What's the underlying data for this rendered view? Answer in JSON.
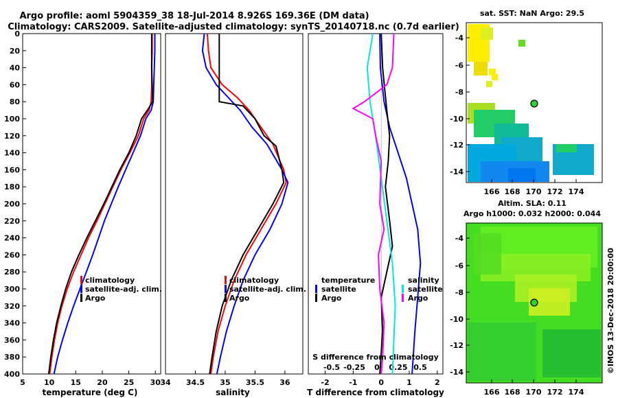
{
  "title_line1": "Argo profile: aoml 5904359_38 18-Jul-2014 8.926S 169.36E (DM data)",
  "title_line2": "Climatology: CARS2009. Satellite-adjusted climatology: synTS_20140718.nc (0.7d earlier)",
  "credit": "©IMOS 13-Dec-2018 20:00:00",
  "colors": {
    "climatology": "#ff0000",
    "satellite": "#0000ff",
    "argo": "#000000",
    "magenta": "#ff00ff",
    "cyan": "#00e5ee"
  },
  "chart_data": [
    {
      "type": "line",
      "name": "temperature-panel",
      "xlabel": "temperature (deg C)",
      "ylabel": "",
      "xlim": [
        5,
        31
      ],
      "ylim": [
        400,
        0
      ],
      "xticks": [
        5,
        10,
        15,
        20,
        25,
        30
      ],
      "yticks": [
        0,
        20,
        40,
        60,
        80,
        100,
        120,
        140,
        160,
        180,
        200,
        220,
        240,
        260,
        280,
        300,
        320,
        340,
        360,
        380,
        400
      ],
      "legend": [
        "climatology",
        "satellite-adj. clim.",
        "Argo"
      ],
      "legend_position": "bottom-right",
      "series": [
        {
          "name": "climatology",
          "color": "#ff0000",
          "points": [
            [
              29.4,
              0
            ],
            [
              29.4,
              20
            ],
            [
              29.3,
              40
            ],
            [
              29.3,
              60
            ],
            [
              29.2,
              80
            ],
            [
              28.8,
              90
            ],
            [
              27.8,
              100
            ],
            [
              26.8,
              120
            ],
            [
              25.2,
              140
            ],
            [
              23.5,
              160
            ],
            [
              22.0,
              180
            ],
            [
              20.5,
              200
            ],
            [
              19.0,
              220
            ],
            [
              17.4,
              240
            ],
            [
              16.0,
              260
            ],
            [
              14.6,
              280
            ],
            [
              13.4,
              300
            ],
            [
              12.4,
              320
            ],
            [
              11.6,
              340
            ],
            [
              11.0,
              360
            ],
            [
              10.5,
              380
            ],
            [
              10.1,
              400
            ]
          ]
        },
        {
          "name": "satellite-adj. clim.",
          "color": "#0000ff",
          "points": [
            [
              29.9,
              0
            ],
            [
              29.9,
              20
            ],
            [
              29.8,
              40
            ],
            [
              29.7,
              60
            ],
            [
              29.6,
              80
            ],
            [
              29.2,
              90
            ],
            [
              28.2,
              100
            ],
            [
              27.2,
              120
            ],
            [
              25.8,
              140
            ],
            [
              24.4,
              160
            ],
            [
              23.0,
              180
            ],
            [
              21.7,
              200
            ],
            [
              20.4,
              220
            ],
            [
              19.3,
              240
            ],
            [
              18.2,
              260
            ],
            [
              17.0,
              280
            ],
            [
              15.8,
              300
            ],
            [
              14.6,
              320
            ],
            [
              13.5,
              340
            ],
            [
              12.5,
              360
            ],
            [
              11.6,
              380
            ],
            [
              10.9,
              400
            ]
          ]
        },
        {
          "name": "Argo",
          "color": "#000000",
          "points": [
            [
              29.3,
              0
            ],
            [
              29.3,
              20
            ],
            [
              29.3,
              40
            ],
            [
              29.4,
              60
            ],
            [
              29.5,
              80
            ],
            [
              28.5,
              90
            ],
            [
              27.4,
              100
            ],
            [
              26.4,
              120
            ],
            [
              25.0,
              140
            ],
            [
              23.3,
              160
            ],
            [
              21.8,
              180
            ],
            [
              20.3,
              200
            ],
            [
              18.7,
              220
            ],
            [
              17.1,
              240
            ],
            [
              15.6,
              260
            ],
            [
              14.2,
              280
            ],
            [
              13.1,
              300
            ],
            [
              12.2,
              320
            ],
            [
              11.4,
              340
            ],
            [
              10.8,
              360
            ],
            [
              10.3,
              380
            ],
            [
              9.9,
              400
            ]
          ]
        }
      ]
    },
    {
      "type": "line",
      "name": "salinity-panel",
      "xlabel": "salinity",
      "ylabel": "",
      "xlim": [
        34,
        36.3
      ],
      "ylim": [
        400,
        0
      ],
      "xticks": [
        34,
        34.5,
        35,
        35.5,
        36
      ],
      "legend": [
        "climatology",
        "satellite-adj. clim.",
        "Argo"
      ],
      "legend_position": "bottom-right",
      "series": [
        {
          "name": "climatology",
          "color": "#ff0000",
          "points": [
            [
              34.7,
              0
            ],
            [
              34.72,
              20
            ],
            [
              34.76,
              40
            ],
            [
              34.95,
              60
            ],
            [
              35.2,
              75
            ],
            [
              35.4,
              90
            ],
            [
              35.6,
              110
            ],
            [
              35.8,
              130
            ],
            [
              35.98,
              160
            ],
            [
              36.02,
              175
            ],
            [
              35.85,
              200
            ],
            [
              35.6,
              230
            ],
            [
              35.35,
              260
            ],
            [
              35.15,
              290
            ],
            [
              35.0,
              320
            ],
            [
              34.88,
              350
            ],
            [
              34.8,
              380
            ],
            [
              34.76,
              400
            ]
          ]
        },
        {
          "name": "satellite-adj. clim.",
          "color": "#0000ff",
          "points": [
            [
              34.65,
              0
            ],
            [
              34.62,
              20
            ],
            [
              34.68,
              40
            ],
            [
              34.85,
              60
            ],
            [
              35.05,
              75
            ],
            [
              35.25,
              90
            ],
            [
              35.45,
              110
            ],
            [
              35.7,
              130
            ],
            [
              35.95,
              160
            ],
            [
              36.05,
              175
            ],
            [
              35.95,
              200
            ],
            [
              35.75,
              230
            ],
            [
              35.5,
              260
            ],
            [
              35.3,
              290
            ],
            [
              35.15,
              320
            ],
            [
              35.02,
              350
            ],
            [
              34.92,
              380
            ],
            [
              34.86,
              400
            ]
          ]
        },
        {
          "name": "Argo",
          "color": "#000000",
          "points": [
            [
              34.9,
              0
            ],
            [
              34.9,
              40
            ],
            [
              34.9,
              80
            ],
            [
              35.3,
              85
            ],
            [
              35.5,
              100
            ],
            [
              35.65,
              120
            ],
            [
              35.85,
              132
            ],
            [
              35.95,
              160
            ],
            [
              35.98,
              175
            ],
            [
              35.8,
              200
            ],
            [
              35.55,
              230
            ],
            [
              35.3,
              260
            ],
            [
              35.1,
              290
            ],
            [
              34.95,
              320
            ],
            [
              34.85,
              350
            ],
            [
              34.78,
              380
            ],
            [
              34.74,
              400
            ]
          ]
        }
      ]
    },
    {
      "type": "line",
      "name": "difference-panel",
      "xlabel": "T difference from climatology",
      "ylabel": "",
      "secondary_xlabel": "S difference from climatology",
      "xlim": [
        -2.6,
        2.2
      ],
      "ylim": [
        400,
        0
      ],
      "xticks": [
        -2,
        -1,
        0,
        1,
        2
      ],
      "secondary_xticks": [
        -0.5,
        -0.25,
        0,
        0.25,
        0.5
      ],
      "legend_left_title": "temperature",
      "legend_left": [
        "satellite",
        "Argo"
      ],
      "legend_right_title": "salinity",
      "legend_right": [
        "satellite",
        "Argo"
      ],
      "series": [
        {
          "name": "T satellite",
          "color": "#0000ff",
          "points": [
            [
              -0.05,
              0
            ],
            [
              -0.03,
              40
            ],
            [
              0.1,
              80
            ],
            [
              0.3,
              110
            ],
            [
              0.6,
              140
            ],
            [
              0.9,
              170
            ],
            [
              1.1,
              200
            ],
            [
              1.3,
              230
            ],
            [
              1.4,
              270
            ],
            [
              1.3,
              310
            ],
            [
              1.2,
              350
            ],
            [
              1.1,
              400
            ]
          ]
        },
        {
          "name": "T Argo",
          "color": "#000000",
          "points": [
            [
              0.0,
              0
            ],
            [
              0.05,
              40
            ],
            [
              0.2,
              90
            ],
            [
              0.3,
              120
            ],
            [
              0.25,
              150
            ],
            [
              0.15,
              180
            ],
            [
              0.3,
              220
            ],
            [
              0.4,
              250
            ],
            [
              0.2,
              280
            ],
            [
              0.0,
              310
            ],
            [
              0.05,
              350
            ],
            [
              -0.05,
              400
            ]
          ]
        },
        {
          "name": "S satellite",
          "color": "#00e5ee",
          "points": [
            [
              -0.3,
              0
            ],
            [
              -0.5,
              40
            ],
            [
              -0.4,
              80
            ],
            [
              -0.2,
              120
            ],
            [
              0.0,
              170
            ],
            [
              0.2,
              220
            ],
            [
              0.4,
              270
            ],
            [
              0.5,
              320
            ],
            [
              0.45,
              360
            ],
            [
              0.4,
              400
            ]
          ]
        },
        {
          "name": "S Argo",
          "color": "#ff00ff",
          "points": [
            [
              0.45,
              0
            ],
            [
              0.4,
              40
            ],
            [
              0.2,
              60
            ],
            [
              -0.6,
              80
            ],
            [
              -1.0,
              88
            ],
            [
              -0.3,
              100
            ],
            [
              -0.2,
              120
            ],
            [
              0.0,
              150
            ],
            [
              -0.05,
              200
            ],
            [
              0.1,
              230
            ],
            [
              -0.1,
              260
            ],
            [
              -0.05,
              300
            ],
            [
              0.1,
              340
            ],
            [
              0.05,
              380
            ],
            [
              0.0,
              400
            ]
          ]
        }
      ]
    }
  ],
  "map_sst": {
    "title": "sat. SST: NaN Argo: 29.5",
    "xticks": [
      "166",
      "168",
      "170",
      "172",
      "174"
    ],
    "yticks": [
      "-4",
      "-6",
      "-8",
      "-10",
      "-12",
      "-14"
    ]
  },
  "map_sla": {
    "title1": "Altim. SLA: 0.11",
    "title2": "Argo h1000: 0.032 h2000: 0.044",
    "xticks": [
      "166",
      "168",
      "170",
      "172",
      "174"
    ],
    "yticks": [
      "-4",
      "-6",
      "-8",
      "-10",
      "-12",
      "-14"
    ]
  }
}
